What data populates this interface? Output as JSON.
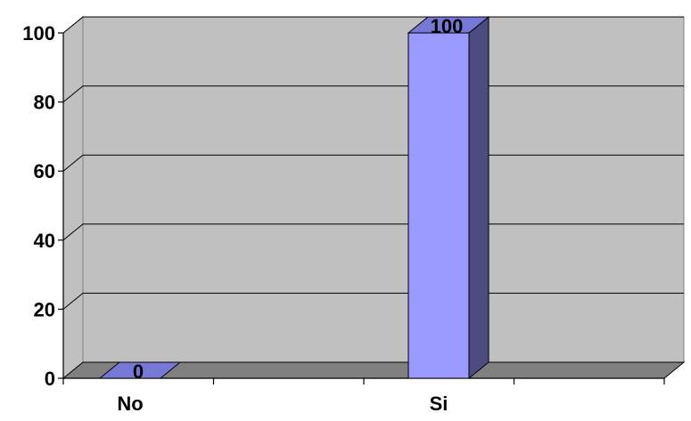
{
  "chart_data": {
    "type": "bar",
    "style": "3d-column",
    "categories": [
      "No",
      "Si"
    ],
    "values": [
      0,
      100
    ],
    "data_labels": [
      "0",
      "100"
    ],
    "ylim": [
      0,
      100
    ],
    "yticks": [
      0,
      20,
      40,
      60,
      80,
      100
    ],
    "ytick_labels": [
      "0",
      "20",
      "40",
      "60",
      "80",
      "100"
    ],
    "grid": true,
    "legend": "none",
    "title": "",
    "xlabel": "",
    "ylabel": ""
  },
  "colors": {
    "wall": "#c0c0c0",
    "floor": "#808080",
    "gridline": "#000000",
    "bar_front": "#9999ff",
    "bar_top": "#7777d6",
    "bar_side": "#4c4c80",
    "bar_edge": "#000000",
    "text": "#000000"
  }
}
